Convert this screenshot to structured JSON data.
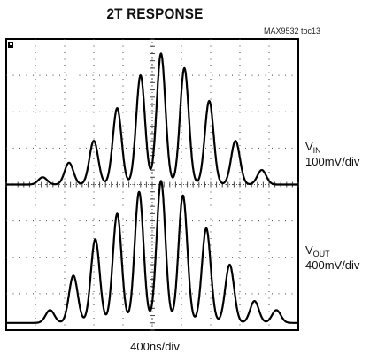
{
  "figure": {
    "title": "2T RESPONSE",
    "figure_id": "MAX9532 toc13",
    "x_scale": "400ns/div"
  },
  "channels": {
    "vin": {
      "name": "V",
      "subscript": "IN",
      "scale": "100mV/div"
    },
    "vout": {
      "name": "V",
      "subscript": "OUT",
      "scale": "400mV/div"
    }
  },
  "chart_data": {
    "type": "line",
    "title": "2T RESPONSE",
    "xlabel": "400ns/div",
    "xlim": [
      0,
      10
    ],
    "ylim": [
      0,
      8
    ],
    "grid": true,
    "series": [
      {
        "name": "VIN 100mV/div",
        "baseline_div": 4.0,
        "pulse_peaks": [
          {
            "t": 1.25,
            "amp": 0.2
          },
          {
            "t": 2.15,
            "amp": 0.6
          },
          {
            "t": 3.0,
            "amp": 1.2
          },
          {
            "t": 3.8,
            "amp": 2.1
          },
          {
            "t": 4.6,
            "amp": 3.0
          },
          {
            "t": 5.3,
            "amp": 3.6
          },
          {
            "t": 6.1,
            "amp": 3.2
          },
          {
            "t": 6.95,
            "amp": 2.3
          },
          {
            "t": 7.85,
            "amp": 1.2
          },
          {
            "t": 8.75,
            "amp": 0.4
          }
        ]
      },
      {
        "name": "VOUT 400mV/div",
        "baseline_div": 0.2,
        "pulse_peaks": [
          {
            "t": 1.5,
            "amp": 0.35
          },
          {
            "t": 2.3,
            "amp": 1.3
          },
          {
            "t": 3.05,
            "amp": 2.3
          },
          {
            "t": 3.8,
            "amp": 3.0
          },
          {
            "t": 4.55,
            "amp": 3.6
          },
          {
            "t": 5.3,
            "amp": 3.9
          },
          {
            "t": 6.05,
            "amp": 3.5
          },
          {
            "t": 6.85,
            "amp": 2.6
          },
          {
            "t": 7.65,
            "amp": 1.6
          },
          {
            "t": 8.5,
            "amp": 0.6
          },
          {
            "t": 9.25,
            "amp": 0.35
          }
        ]
      }
    ]
  }
}
